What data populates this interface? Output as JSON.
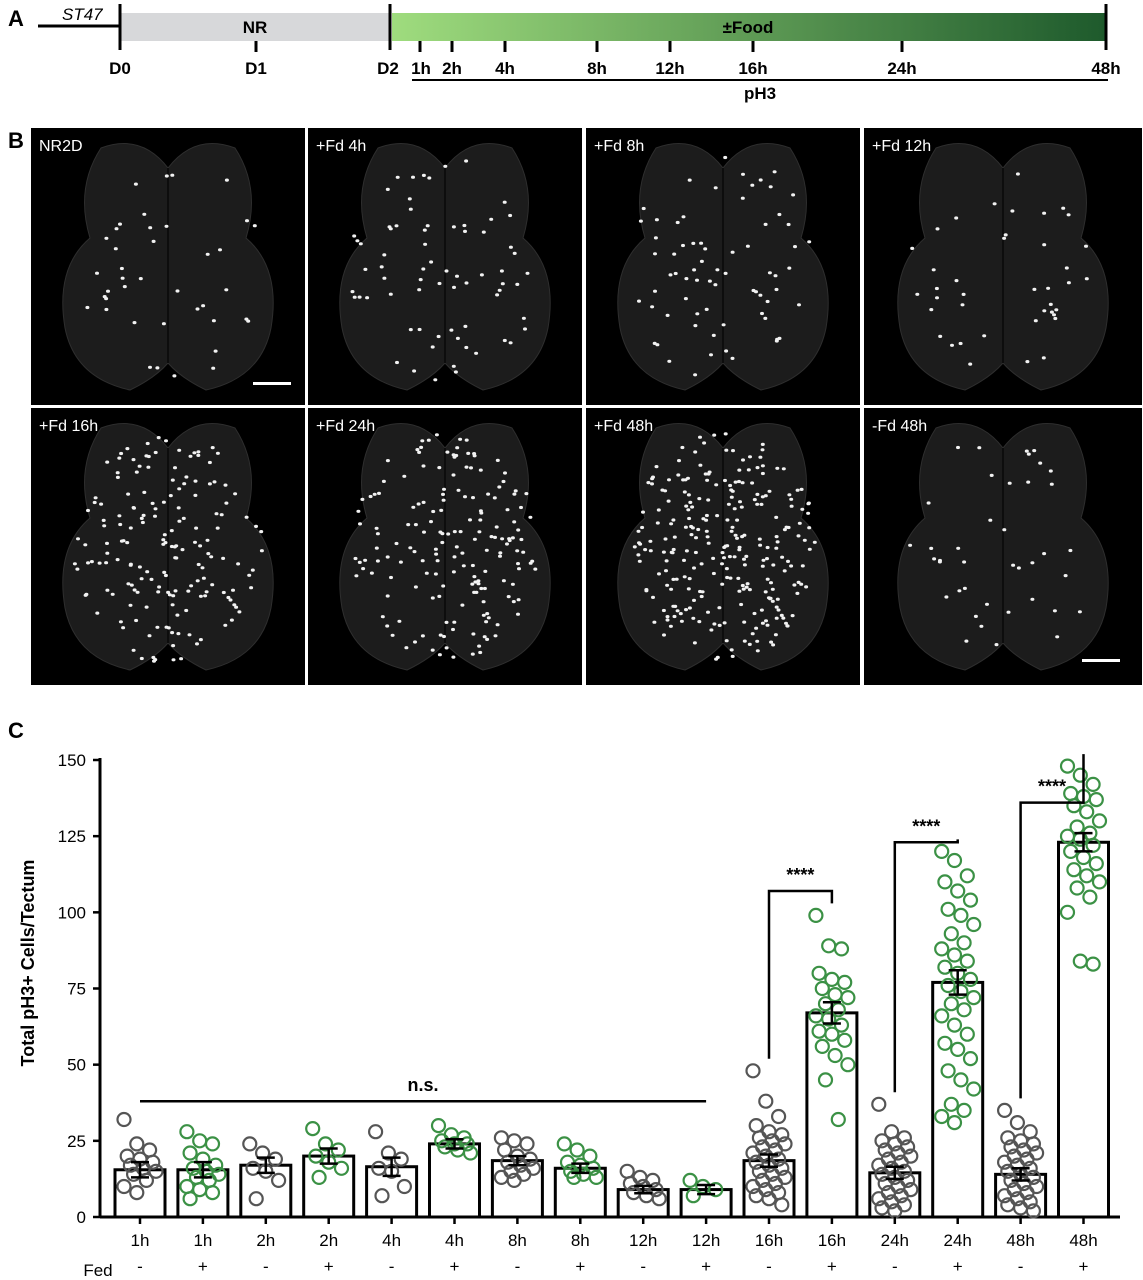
{
  "panels": {
    "a": "A",
    "b": "B",
    "c": "C"
  },
  "timeline": {
    "st_label": "ST47",
    "nr_label": "NR",
    "food_label": "±Food",
    "day_ticks": [
      "D0",
      "D1",
      "D2"
    ],
    "hour_ticks": [
      "1h",
      "2h",
      "4h",
      "8h",
      "12h",
      "16h",
      "24h",
      "48h"
    ],
    "ph3_label": "pH3",
    "colors": {
      "nr_bar": "#d7d8da",
      "food_start": "#9fdc7e",
      "food_end": "#1e5a2c"
    }
  },
  "micrographs": {
    "tiles": [
      {
        "label": "NR2D",
        "density": "low",
        "scalebar": true
      },
      {
        "label": "+Fd 4h",
        "density": "medium",
        "scalebar": false
      },
      {
        "label": "+Fd 8h",
        "density": "medium",
        "scalebar": false
      },
      {
        "label": "+Fd 12h",
        "density": "low",
        "scalebar": false
      },
      {
        "label": "+Fd 16h",
        "density": "high",
        "scalebar": false
      },
      {
        "label": "+Fd 24h",
        "density": "high",
        "scalebar": false
      },
      {
        "label": "+Fd 48h",
        "density": "very-high",
        "scalebar": false
      },
      {
        "label": "-Fd 48h",
        "density": "low",
        "scalebar": true
      }
    ]
  },
  "chart_data": {
    "type": "bar",
    "ylabel": "Total pH3+ Cells/Tectum",
    "ylim": [
      0,
      150
    ],
    "yticks": [
      0,
      25,
      50,
      75,
      100,
      125,
      150
    ],
    "fed_row_label": "Fed",
    "categories": [
      "1h",
      "1h",
      "2h",
      "2h",
      "4h",
      "4h",
      "8h",
      "8h",
      "12h",
      "12h",
      "16h",
      "16h",
      "24h",
      "24h",
      "48h",
      "48h"
    ],
    "fed": [
      "-",
      "+",
      "-",
      "+",
      "-",
      "+",
      "-",
      "+",
      "-",
      "+",
      "-",
      "+",
      "-",
      "+",
      "-",
      "+"
    ],
    "means": [
      15.5,
      15.5,
      17,
      20,
      16.5,
      24,
      18.5,
      16,
      9,
      9,
      18.5,
      67,
      14.5,
      77,
      14,
      123
    ],
    "sem": [
      2.5,
      2.5,
      2.5,
      2.5,
      3,
      1.5,
      1.5,
      1.5,
      1.2,
      1.5,
      2,
      3.5,
      2,
      4,
      2,
      3
    ],
    "points": [
      [
        32,
        24,
        22,
        20,
        19,
        18,
        17,
        16,
        15,
        14,
        12,
        10,
        8
      ],
      [
        28,
        25,
        24,
        21,
        19,
        17,
        16,
        15,
        14,
        13,
        12,
        10,
        9,
        8,
        6
      ],
      [
        24,
        21,
        19,
        16,
        15,
        12,
        6
      ],
      [
        29,
        24,
        22,
        20,
        18,
        16,
        13
      ],
      [
        28,
        21,
        19,
        16,
        15,
        10,
        7
      ],
      [
        30,
        27,
        26,
        25,
        24,
        24,
        23,
        22,
        21
      ],
      [
        26,
        25,
        24,
        22,
        20,
        19,
        18,
        17,
        16,
        15,
        14,
        13,
        12
      ],
      [
        24,
        22,
        20,
        18,
        17,
        16,
        15,
        14,
        13,
        13
      ],
      [
        15,
        13,
        12,
        11,
        10,
        9,
        8,
        7,
        6
      ],
      [
        12,
        10,
        9,
        7
      ],
      [
        48,
        38,
        33,
        30,
        28,
        27,
        26,
        25,
        24,
        23,
        22,
        21,
        20,
        19,
        18,
        17,
        16,
        15,
        14,
        13,
        12,
        11,
        10,
        9,
        8,
        7,
        6,
        4
      ],
      [
        99,
        89,
        88,
        80,
        78,
        77,
        75,
        73,
        72,
        70,
        68,
        66,
        65,
        63,
        61,
        60,
        58,
        56,
        53,
        50,
        45,
        32
      ],
      [
        37,
        28,
        26,
        25,
        24,
        23,
        22,
        21,
        20,
        19,
        18,
        17,
        16,
        15,
        14,
        13,
        12,
        11,
        10,
        9,
        8,
        7,
        6,
        5,
        4,
        3,
        2
      ],
      [
        120,
        117,
        112,
        110,
        107,
        104,
        101,
        99,
        96,
        93,
        90,
        88,
        86,
        84,
        82,
        80,
        78,
        76,
        74,
        72,
        70,
        68,
        66,
        63,
        60,
        57,
        55,
        52,
        48,
        45,
        42,
        37,
        35,
        33,
        31
      ],
      [
        35,
        31,
        28,
        26,
        25,
        24,
        23,
        22,
        21,
        20,
        19,
        18,
        17,
        16,
        15,
        14,
        13,
        12,
        11,
        10,
        9,
        8,
        7,
        6,
        5,
        4,
        3,
        2
      ],
      [
        148,
        145,
        142,
        139,
        138,
        137,
        135,
        133,
        130,
        128,
        126,
        125,
        124,
        122,
        120,
        118,
        116,
        114,
        112,
        110,
        108,
        105,
        100,
        84,
        83
      ]
    ],
    "annotations": [
      {
        "text": "n.s.",
        "from": 0,
        "to": 9,
        "y": 38
      },
      {
        "text": "****",
        "from": 10,
        "to": 11,
        "y": 107
      },
      {
        "text": "****",
        "from": 12,
        "to": 13,
        "y": 123
      },
      {
        "text": "****",
        "from": 14,
        "to": 15,
        "y": 136
      }
    ],
    "colors": {
      "fed_minus": "#555555",
      "fed_plus": "#3b9145",
      "bar_fill": "#ffffff",
      "bar_edge": "#000000"
    }
  }
}
